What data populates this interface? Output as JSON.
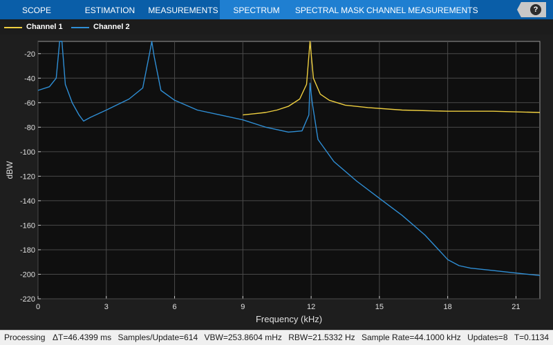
{
  "toolstrip": {
    "tabs": [
      {
        "label": "SCOPE"
      },
      {
        "label": "ESTIMATION"
      },
      {
        "label": "MEASUREMENTS"
      },
      {
        "label": "SPECTRUM"
      },
      {
        "label": "SPECTRAL MASK"
      },
      {
        "label": "CHANNEL MEASUREMENTS"
      }
    ],
    "selected_tab": "SPECTRUM",
    "help_label": "?"
  },
  "legend": {
    "placement": "top-left",
    "items": [
      {
        "label": "Channel 1",
        "color": "#f0d040"
      },
      {
        "label": "Channel 2",
        "color": "#2f8fd6"
      }
    ]
  },
  "colors": {
    "toolstrip": "#0a5ea8",
    "selected_tab": "#1f7fd1",
    "plot_background": "#0f0f0f",
    "grid": "#4a4a4a"
  },
  "chart_data": {
    "type": "line",
    "title": "",
    "xlabel": "Frequency (kHz)",
    "ylabel": "dBW",
    "xlim": [
      0,
      22.05
    ],
    "ylim": [
      -220,
      -10
    ],
    "xticks": [
      0,
      3,
      6,
      9,
      12,
      15,
      18,
      21
    ],
    "yticks": [
      -20,
      -40,
      -60,
      -80,
      -100,
      -120,
      -140,
      -160,
      -180,
      -200,
      -220
    ],
    "grid": true,
    "series": [
      {
        "name": "Channel 1",
        "color": "#f0d040",
        "points": [
          [
            9.0,
            -70
          ],
          [
            9.5,
            -69
          ],
          [
            10.0,
            -68
          ],
          [
            10.5,
            -66
          ],
          [
            11.0,
            -63
          ],
          [
            11.5,
            -57
          ],
          [
            11.8,
            -45
          ],
          [
            11.95,
            -10
          ],
          [
            12.1,
            -40
          ],
          [
            12.4,
            -53
          ],
          [
            12.8,
            -58
          ],
          [
            13.5,
            -62
          ],
          [
            14.5,
            -64
          ],
          [
            16.0,
            -66
          ],
          [
            18.0,
            -67
          ],
          [
            20.0,
            -67
          ],
          [
            22.05,
            -68
          ]
        ]
      },
      {
        "name": "Channel 2",
        "color": "#2f8fd6",
        "points": [
          [
            0.0,
            -50
          ],
          [
            0.5,
            -47
          ],
          [
            0.8,
            -40
          ],
          [
            0.95,
            -10
          ],
          [
            1.05,
            -10
          ],
          [
            1.2,
            -45
          ],
          [
            1.5,
            -60
          ],
          [
            1.8,
            -70
          ],
          [
            2.0,
            -75
          ],
          [
            2.3,
            -72
          ],
          [
            3.0,
            -66
          ],
          [
            4.0,
            -57
          ],
          [
            4.6,
            -48
          ],
          [
            4.9,
            -20
          ],
          [
            5.0,
            -10
          ],
          [
            5.1,
            -22
          ],
          [
            5.4,
            -50
          ],
          [
            6.0,
            -58
          ],
          [
            7.0,
            -66
          ],
          [
            8.0,
            -70
          ],
          [
            9.0,
            -74
          ],
          [
            10.0,
            -80
          ],
          [
            11.0,
            -84
          ],
          [
            11.6,
            -83
          ],
          [
            11.9,
            -70
          ],
          [
            11.95,
            -44
          ],
          [
            12.05,
            -60
          ],
          [
            12.3,
            -90
          ],
          [
            13.0,
            -108
          ],
          [
            14.0,
            -124
          ],
          [
            15.0,
            -138
          ],
          [
            16.0,
            -152
          ],
          [
            17.0,
            -168
          ],
          [
            18.0,
            -188
          ],
          [
            18.5,
            -193
          ],
          [
            19.0,
            -195
          ],
          [
            20.0,
            -197
          ],
          [
            21.0,
            -199
          ],
          [
            22.05,
            -201
          ]
        ]
      }
    ]
  },
  "status": {
    "state": "Processing",
    "delta_t": "ΔT=46.4399 ms",
    "samples": "Samples/Update=614",
    "vbw": "VBW=253.8604 mHz",
    "rbw": "RBW=21.5332 Hz",
    "sample_rate": "Sample Rate=44.1000 kHz",
    "updates": "Updates=8",
    "time": "T=0.1134"
  }
}
